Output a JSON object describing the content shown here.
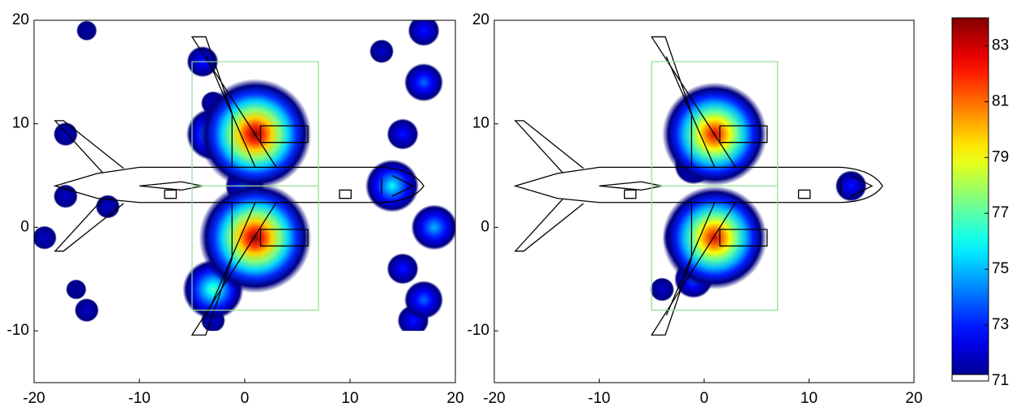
{
  "chart_data": [
    {
      "type": "heatmap",
      "xlim": [
        -20,
        20
      ],
      "ylim": [
        -15,
        20
      ],
      "xticks": [
        -20,
        -10,
        0,
        10,
        20
      ],
      "yticks": [
        -10,
        0,
        10,
        20
      ],
      "sources": [
        {
          "x": -15,
          "y": 19,
          "level": 71.5
        },
        {
          "x": -16,
          "y": -6,
          "level": 71.5
        },
        {
          "x": -17,
          "y": 9,
          "level": 72
        },
        {
          "x": -13,
          "y": 2,
          "level": 72
        },
        {
          "x": -17,
          "y": 3,
          "level": 72
        },
        {
          "x": -19,
          "y": -1,
          "level": 72
        },
        {
          "x": -15,
          "y": -8,
          "level": 72
        },
        {
          "x": -3,
          "y": -9,
          "level": 72
        },
        {
          "x": -3,
          "y": 12,
          "level": 72
        },
        {
          "x": 13,
          "y": 17,
          "level": 72
        },
        {
          "x": 17,
          "y": 19,
          "level": 73
        },
        {
          "x": 15,
          "y": 9,
          "level": 73
        },
        {
          "x": 15,
          "y": -4,
          "level": 73
        },
        {
          "x": 16,
          "y": -9,
          "level": 73
        },
        {
          "x": -4,
          "y": 16,
          "level": 73
        },
        {
          "x": 17,
          "y": 14,
          "level": 74
        },
        {
          "x": 17,
          "y": -7,
          "level": 74
        },
        {
          "x": 18,
          "y": 0,
          "level": 75
        },
        {
          "x": 0,
          "y": 4,
          "level": 74
        },
        {
          "x": 14,
          "y": 4,
          "level": 76
        },
        {
          "x": -3,
          "y": 9,
          "level": 76
        },
        {
          "x": -3,
          "y": -6,
          "level": 77
        },
        {
          "x": 1,
          "y": 9,
          "level": 84
        },
        {
          "x": 1,
          "y": -1,
          "level": 84
        }
      ]
    },
    {
      "type": "heatmap",
      "xlim": [
        -20,
        20
      ],
      "ylim": [
        -15,
        20
      ],
      "xticks": [
        -20,
        -10,
        0,
        10,
        20
      ],
      "yticks": [
        -10,
        0,
        10,
        20
      ],
      "sources": [
        {
          "x": -4,
          "y": -6,
          "level": 72
        },
        {
          "x": 14,
          "y": 4,
          "level": 73
        },
        {
          "x": -1,
          "y": 6,
          "level": 74
        },
        {
          "x": -1,
          "y": -5,
          "level": 74
        },
        {
          "x": -1,
          "y": 9,
          "level": 76
        },
        {
          "x": -1,
          "y": -1,
          "level": 77
        },
        {
          "x": 1,
          "y": 9,
          "level": 83
        },
        {
          "x": 1,
          "y": -1,
          "level": 83
        }
      ]
    }
  ],
  "colorbar": {
    "clim": [
      71,
      84
    ],
    "ticks": [
      71,
      73,
      75,
      77,
      79,
      81,
      83
    ]
  }
}
